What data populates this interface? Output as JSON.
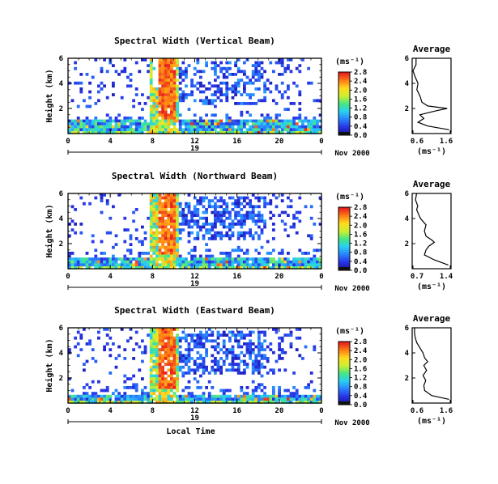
{
  "chart_data": [
    {
      "type": "heatmap",
      "title": "Spectral Width (Vertical Beam)",
      "ylabel": "Height (km)",
      "xlabel": "",
      "xlim": [
        0,
        24
      ],
      "ylim": [
        0,
        6
      ],
      "xticks": [
        "0",
        "4",
        "8",
        "12",
        "16",
        "20",
        "0"
      ],
      "yticks": [
        "2",
        "4",
        "6"
      ],
      "day_label": "19",
      "date_label": "Nov 2000",
      "colorbar": {
        "unit": "(ms⁻¹)",
        "ticks": [
          "0.0",
          "0.4",
          "0.8",
          "1.2",
          "1.6",
          "2.0",
          "2.4",
          "2.8"
        ]
      },
      "average": {
        "title": "Average",
        "xlabel": "(ms⁻¹)",
        "xlim": [
          0.6,
          1.6
        ],
        "xticks": [
          "0.6",
          "1.6"
        ],
        "yticks": [
          "2",
          "4",
          "6"
        ],
        "height": [
          0.3,
          0.6,
          0.9,
          1.2,
          1.5,
          1.8,
          2.0,
          2.2,
          2.5,
          3.0,
          3.5,
          4.0,
          4.5,
          5.0,
          5.5,
          6.0
        ],
        "width": [
          1.55,
          1.0,
          0.75,
          0.9,
          0.8,
          1.2,
          1.5,
          1.0,
          0.85,
          0.8,
          0.72,
          0.75,
          0.68,
          0.62,
          0.7,
          0.7
        ]
      }
    },
    {
      "type": "heatmap",
      "title": "Spectral Width (Northward Beam)",
      "ylabel": "Height (km)",
      "xlabel": "",
      "xlim": [
        0,
        24
      ],
      "ylim": [
        0,
        6
      ],
      "xticks": [
        "0",
        "4",
        "8",
        "12",
        "16",
        "20",
        "0"
      ],
      "yticks": [
        "2",
        "4",
        "6"
      ],
      "day_label": "19",
      "date_label": "Nov 2000",
      "colorbar": {
        "unit": "(ms⁻¹)",
        "ticks": [
          "0.0",
          "0.4",
          "0.8",
          "1.2",
          "1.6",
          "2.0",
          "2.4",
          "2.8"
        ]
      },
      "average": {
        "title": "Average",
        "xlabel": "(ms⁻¹)",
        "xlim": [
          0.7,
          1.4
        ],
        "xticks": [
          "0.7",
          "1.4"
        ],
        "yticks": [
          "2",
          "4",
          "6"
        ],
        "height": [
          0.3,
          0.7,
          1.1,
          1.5,
          1.8,
          2.1,
          2.3,
          2.6,
          3.0,
          3.5,
          4.0,
          4.3,
          4.7,
          5.0,
          5.5,
          6.0
        ],
        "width": [
          1.35,
          1.1,
          0.92,
          0.95,
          1.0,
          1.1,
          1.05,
          0.95,
          0.92,
          0.95,
          0.85,
          0.82,
          0.78,
          0.8,
          0.76,
          0.78
        ]
      }
    },
    {
      "type": "heatmap",
      "title": "Spectral Width (Eastward Beam)",
      "ylabel": "Height (km)",
      "xlabel": "Local Time",
      "xlim": [
        0,
        24
      ],
      "ylim": [
        0,
        6
      ],
      "xticks": [
        "0",
        "4",
        "8",
        "12",
        "16",
        "20",
        "0"
      ],
      "yticks": [
        "2",
        "4",
        "6"
      ],
      "day_label": "19",
      "date_label": "Nov 2000",
      "colorbar": {
        "unit": "(ms⁻¹)",
        "ticks": [
          "0.0",
          "0.4",
          "0.8",
          "1.2",
          "1.6",
          "2.0",
          "2.4",
          "2.8"
        ]
      },
      "average": {
        "title": "Average",
        "xlabel": "(ms⁻¹)",
        "xlim": [
          0.6,
          1.6
        ],
        "xticks": [
          "0.6",
          "1.6"
        ],
        "yticks": [
          "2",
          "4",
          "6"
        ],
        "height": [
          0.3,
          0.6,
          1.0,
          1.4,
          1.8,
          2.2,
          2.6,
          3.0,
          3.3,
          3.6,
          4.0,
          4.4,
          4.8,
          5.2,
          5.6,
          6.0
        ],
        "width": [
          1.55,
          1.1,
          0.92,
          0.9,
          0.95,
          0.88,
          0.97,
          0.9,
          1.0,
          0.92,
          0.88,
          0.8,
          0.72,
          0.68,
          0.66,
          0.66
        ]
      }
    }
  ]
}
